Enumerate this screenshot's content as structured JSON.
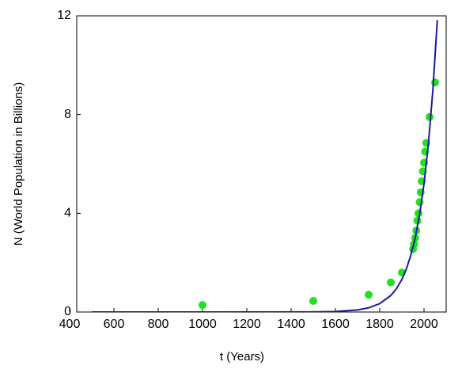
{
  "chart_data": {
    "type": "scatter",
    "xlabel": "t (Years)",
    "ylabel": "N (World Population in Billions)",
    "xlim": [
      400,
      2100
    ],
    "ylim": [
      0,
      12
    ],
    "xticks": [
      400,
      600,
      800,
      1000,
      1200,
      1400,
      1600,
      1800,
      2000
    ],
    "yticks": [
      0,
      4,
      8,
      12
    ],
    "series": [
      {
        "type": "scatter",
        "color": "#22e022",
        "x": [
          1000,
          1500,
          1750,
          1850,
          1900,
          1950,
          1955,
          1960,
          1965,
          1970,
          1975,
          1980,
          1985,
          1990,
          1995,
          2000,
          2005,
          2010,
          2025,
          2050
        ],
        "values": [
          0.28,
          0.45,
          0.7,
          1.2,
          1.6,
          2.55,
          2.75,
          3.0,
          3.3,
          3.7,
          4.0,
          4.45,
          4.85,
          5.3,
          5.7,
          6.05,
          6.5,
          6.85,
          7.9,
          9.3
        ]
      },
      {
        "type": "line",
        "color": "#1a1a9e",
        "x": [
          500,
          1000,
          1500,
          1600,
          1700,
          1750,
          1800,
          1850,
          1875,
          1900,
          1920,
          1940,
          1960,
          1980,
          2000,
          2020,
          2040,
          2060
        ],
        "values": [
          0,
          0,
          0.005,
          0.022,
          0.085,
          0.17,
          0.34,
          0.67,
          0.94,
          1.32,
          1.74,
          2.29,
          3.0,
          3.95,
          5.2,
          6.84,
          9.0,
          11.83
        ]
      }
    ]
  }
}
